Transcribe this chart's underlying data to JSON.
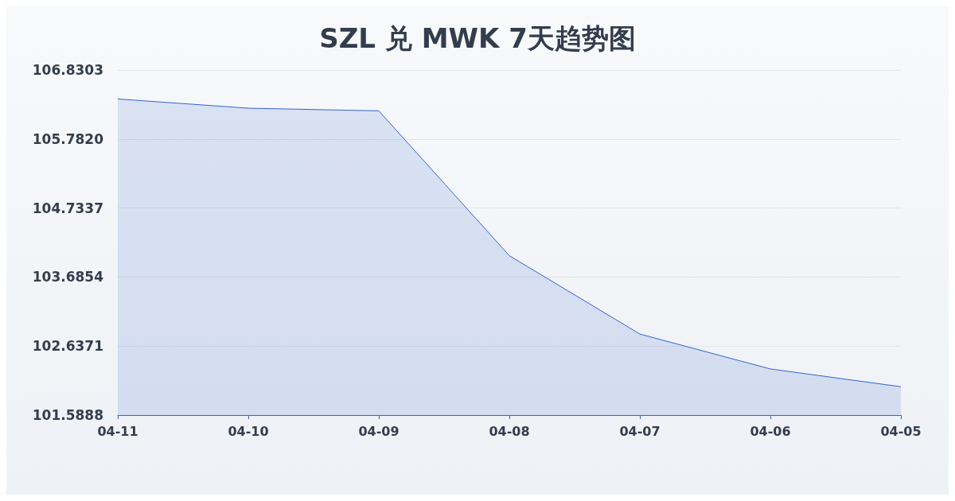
{
  "chart_data": {
    "type": "area",
    "title": "SZL 兑 MWK 7天趋势图",
    "categories": [
      "04-11",
      "04-10",
      "04-09",
      "04-08",
      "04-07",
      "04-06",
      "04-05"
    ],
    "series": [
      {
        "color": "#3366cc",
        "values": [
          106.39,
          106.25,
          106.21,
          104.01,
          102.82,
          102.29,
          102.02
        ]
      }
    ],
    "ylim": [
      101.5888,
      106.8303
    ],
    "yticks": [
      {
        "value": 101.5888,
        "label": "101.5888"
      },
      {
        "value": 102.6371,
        "label": "102.6371"
      },
      {
        "value": 103.6854,
        "label": "103.6854"
      },
      {
        "value": 104.7337,
        "label": "104.7337"
      },
      {
        "value": 105.782,
        "label": "105.7820"
      },
      {
        "value": 106.8303,
        "label": "106.8303"
      }
    ],
    "grid": "y",
    "marker": "none"
  }
}
